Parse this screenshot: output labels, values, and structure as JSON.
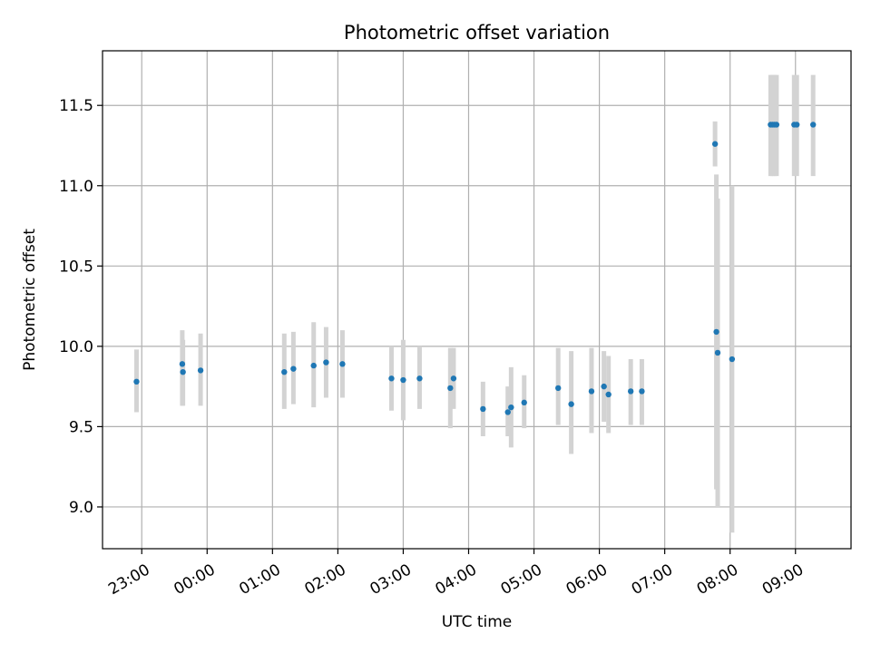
{
  "chart_data": {
    "type": "scatter",
    "title": "Photometric offset variation",
    "xlabel": "UTC time",
    "ylabel": "Photometric offset",
    "x_unit": "UTC hours since 23:00",
    "xlim": [
      -0.6,
      10.85
    ],
    "ylim": [
      8.74,
      11.84
    ],
    "grid": true,
    "x_ticks": [
      {
        "value": 0,
        "label": "23:00"
      },
      {
        "value": 1,
        "label": "00:00"
      },
      {
        "value": 2,
        "label": "01:00"
      },
      {
        "value": 3,
        "label": "02:00"
      },
      {
        "value": 4,
        "label": "03:00"
      },
      {
        "value": 5,
        "label": "04:00"
      },
      {
        "value": 6,
        "label": "05:00"
      },
      {
        "value": 7,
        "label": "06:00"
      },
      {
        "value": 8,
        "label": "07:00"
      },
      {
        "value": 9,
        "label": "08:00"
      },
      {
        "value": 10,
        "label": "09:00"
      }
    ],
    "y_ticks": [
      {
        "value": 9.0,
        "label": "9.0"
      },
      {
        "value": 9.5,
        "label": "9.5"
      },
      {
        "value": 10.0,
        "label": "10.0"
      },
      {
        "value": 10.5,
        "label": "10.5"
      },
      {
        "value": 11.0,
        "label": "11.0"
      },
      {
        "value": 11.5,
        "label": "11.5"
      }
    ],
    "colors": {
      "point": "#1f77b4",
      "errorbar": "#d3d3d3",
      "grid": "#b0b0b0"
    },
    "points": [
      {
        "x": -0.08,
        "y": 9.78,
        "lo": 9.59,
        "hi": 9.98
      },
      {
        "x": 0.62,
        "y": 9.89,
        "lo": 9.63,
        "hi": 10.1
      },
      {
        "x": 0.63,
        "y": 9.84,
        "lo": 9.63,
        "hi": 10.04
      },
      {
        "x": 0.9,
        "y": 9.85,
        "lo": 9.63,
        "hi": 10.08
      },
      {
        "x": 2.18,
        "y": 9.84,
        "lo": 9.61,
        "hi": 10.08
      },
      {
        "x": 2.32,
        "y": 9.86,
        "lo": 9.64,
        "hi": 10.09
      },
      {
        "x": 2.63,
        "y": 9.88,
        "lo": 9.62,
        "hi": 10.15
      },
      {
        "x": 2.82,
        "y": 9.9,
        "lo": 9.68,
        "hi": 10.12
      },
      {
        "x": 3.07,
        "y": 9.89,
        "lo": 9.68,
        "hi": 10.1
      },
      {
        "x": 3.82,
        "y": 9.8,
        "lo": 9.6,
        "hi": 10.0
      },
      {
        "x": 4.0,
        "y": 9.79,
        "lo": 9.54,
        "hi": 10.04
      },
      {
        "x": 4.25,
        "y": 9.8,
        "lo": 9.61,
        "hi": 10.0
      },
      {
        "x": 4.72,
        "y": 9.74,
        "lo": 9.49,
        "hi": 9.99
      },
      {
        "x": 4.77,
        "y": 9.8,
        "lo": 9.61,
        "hi": 9.99
      },
      {
        "x": 5.22,
        "y": 9.61,
        "lo": 9.44,
        "hi": 9.78
      },
      {
        "x": 5.6,
        "y": 9.59,
        "lo": 9.44,
        "hi": 9.75
      },
      {
        "x": 5.65,
        "y": 9.62,
        "lo": 9.37,
        "hi": 9.87
      },
      {
        "x": 5.85,
        "y": 9.65,
        "lo": 9.49,
        "hi": 9.82
      },
      {
        "x": 6.37,
        "y": 9.74,
        "lo": 9.51,
        "hi": 9.99
      },
      {
        "x": 6.57,
        "y": 9.64,
        "lo": 9.33,
        "hi": 9.97
      },
      {
        "x": 6.88,
        "y": 9.72,
        "lo": 9.46,
        "hi": 9.99
      },
      {
        "x": 7.07,
        "y": 9.75,
        "lo": 9.53,
        "hi": 9.97
      },
      {
        "x": 7.14,
        "y": 9.7,
        "lo": 9.46,
        "hi": 9.94
      },
      {
        "x": 7.48,
        "y": 9.72,
        "lo": 9.51,
        "hi": 9.92
      },
      {
        "x": 7.65,
        "y": 9.72,
        "lo": 9.51,
        "hi": 9.92
      },
      {
        "x": 8.77,
        "y": 11.26,
        "lo": 11.12,
        "hi": 11.4
      },
      {
        "x": 8.79,
        "y": 10.09,
        "lo": 9.11,
        "hi": 11.07
      },
      {
        "x": 8.81,
        "y": 9.96,
        "lo": 9.0,
        "hi": 10.92
      },
      {
        "x": 9.03,
        "y": 9.92,
        "lo": 8.84,
        "hi": 11.0
      },
      {
        "x": 9.62,
        "y": 11.38,
        "lo": 11.06,
        "hi": 11.69
      },
      {
        "x": 9.65,
        "y": 11.38,
        "lo": 11.06,
        "hi": 11.69
      },
      {
        "x": 9.68,
        "y": 11.38,
        "lo": 11.06,
        "hi": 11.69
      },
      {
        "x": 9.71,
        "y": 11.38,
        "lo": 11.06,
        "hi": 11.69
      },
      {
        "x": 9.98,
        "y": 11.38,
        "lo": 11.06,
        "hi": 11.69
      },
      {
        "x": 10.02,
        "y": 11.38,
        "lo": 11.06,
        "hi": 11.69
      },
      {
        "x": 10.27,
        "y": 11.38,
        "lo": 11.06,
        "hi": 11.69
      }
    ]
  }
}
